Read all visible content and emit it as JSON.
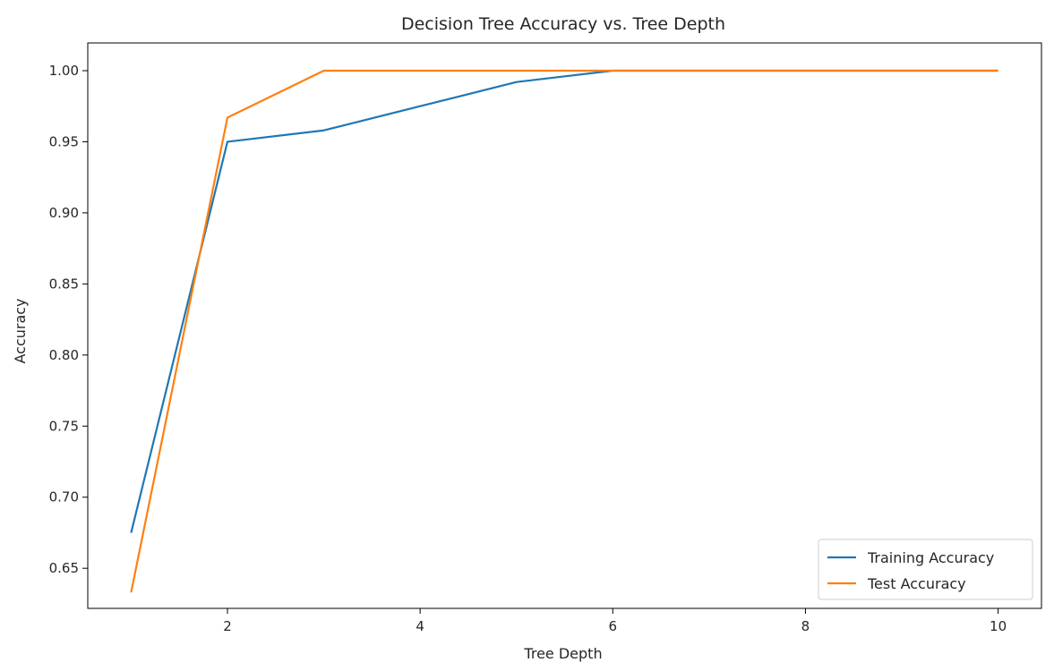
{
  "chart_data": {
    "type": "line",
    "title": "Decision Tree Accuracy vs. Tree Depth",
    "xlabel": "Tree Depth",
    "ylabel": "Accuracy",
    "x": [
      1,
      2,
      3,
      4,
      5,
      6,
      7,
      8,
      9,
      10
    ],
    "xlim": [
      0.55,
      10.45
    ],
    "ylim": [
      0.6218,
      1.0195
    ],
    "xticks": [
      2,
      4,
      6,
      8,
      10
    ],
    "xtick_labels": [
      "2",
      "4",
      "6",
      "8",
      "10"
    ],
    "yticks": [
      0.65,
      0.7,
      0.75,
      0.8,
      0.85,
      0.9,
      0.95,
      1.0
    ],
    "ytick_labels": [
      "0.65",
      "0.70",
      "0.75",
      "0.80",
      "0.85",
      "0.90",
      "0.95",
      "1.00"
    ],
    "grid": false,
    "legend_position": "bottom-right",
    "series": [
      {
        "name": "Training Accuracy",
        "color": "#1f77b4",
        "values": [
          0.675,
          0.95,
          0.958,
          0.975,
          0.992,
          1.0,
          1.0,
          1.0,
          1.0,
          1.0
        ]
      },
      {
        "name": "Test Accuracy",
        "color": "#ff7f0e",
        "values": [
          0.633,
          0.967,
          1.0,
          1.0,
          1.0,
          1.0,
          1.0,
          1.0,
          1.0,
          1.0
        ]
      }
    ]
  }
}
